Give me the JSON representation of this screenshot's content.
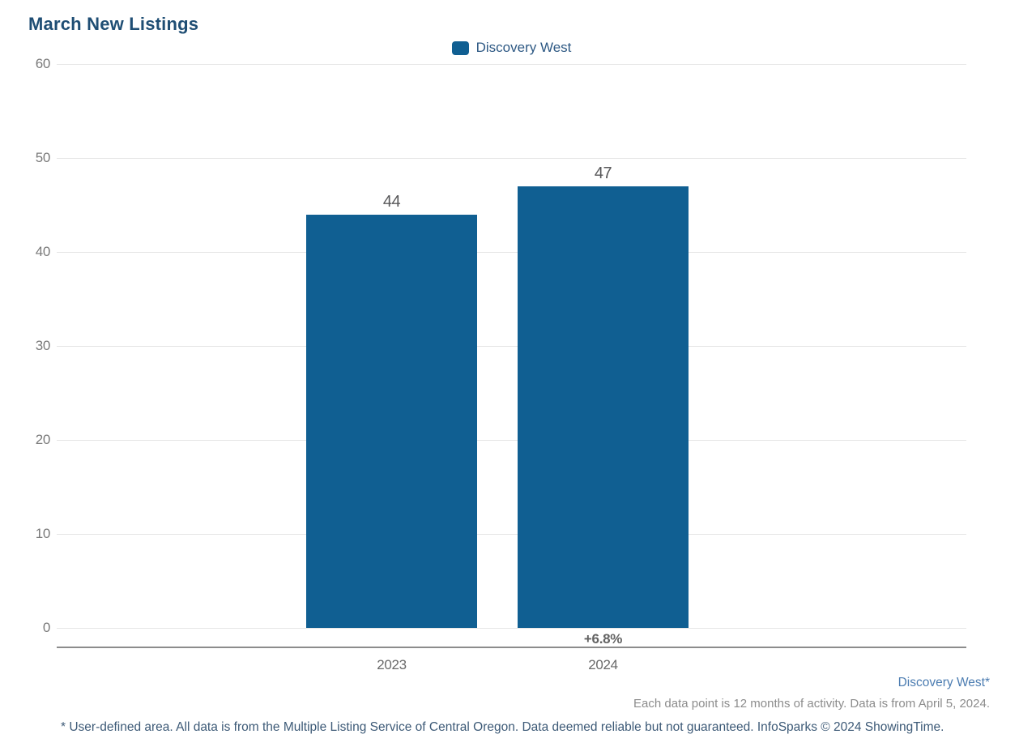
{
  "title": "March New Listings",
  "colors": {
    "title": "#1F4E74",
    "bar": "#105F92",
    "legend_text": "#2E5984",
    "gridline": "#E6E6E6",
    "axis_line": "#8C8C8C",
    "tick_label": "#7A7A7A",
    "value_label": "#58585A",
    "change_label": "#636363",
    "footnote_area": "#4B7CB1",
    "footnote_data": "#8C8C8C",
    "disclaimer": "#3D5A77"
  },
  "legend": {
    "items": [
      {
        "label": "Discovery West",
        "color": "#105F92"
      }
    ]
  },
  "chart_data": {
    "type": "bar",
    "title": "March New Listings",
    "categories": [
      "2023",
      "2024"
    ],
    "series": [
      {
        "name": "Discovery West",
        "values": [
          44,
          47
        ]
      }
    ],
    "change_labels": [
      "",
      "+6.8%"
    ],
    "xlabel": "",
    "ylabel": "",
    "ylim": [
      0,
      60
    ],
    "yticks": [
      0,
      10,
      20,
      30,
      40,
      50,
      60
    ],
    "grid": true,
    "legend_position": "top-center",
    "bar_color": "#105F92"
  },
  "footnotes": {
    "area_label": "Discovery West*",
    "data_note": "Each data point is 12 months of activity. Data is from April 5, 2024.",
    "disclaimer": "* User-defined area. All data is from the Multiple Listing Service of Central Oregon. Data deemed reliable but not guaranteed. InfoSparks © 2024 ShowingTime."
  }
}
